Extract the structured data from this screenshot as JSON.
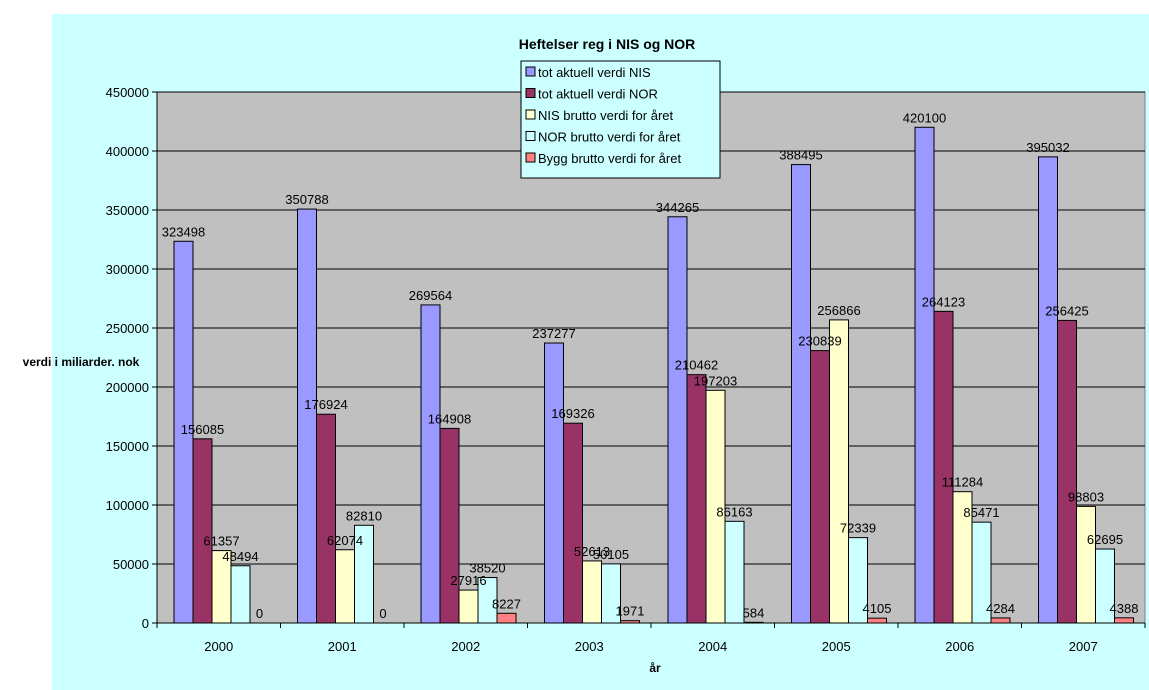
{
  "chart_data": {
    "type": "bar",
    "title": "Heftelser reg i NIS og NOR",
    "xlabel": "år",
    "ylabel": "verdi i miliarder. nok",
    "ylim": [
      0,
      450000
    ],
    "yticks": [
      0,
      50000,
      100000,
      150000,
      200000,
      250000,
      300000,
      350000,
      400000,
      450000
    ],
    "categories": [
      "2000",
      "2001",
      "2002",
      "2003",
      "2004",
      "2005",
      "2006",
      "2007"
    ],
    "series": [
      {
        "name": "tot aktuell verdi NIS",
        "color": "#9999ff",
        "values": [
          323498,
          350788,
          269564,
          237277,
          344265,
          388495,
          420100,
          395032
        ]
      },
      {
        "name": "tot aktuell verdi NOR",
        "color": "#993366",
        "values": [
          156085,
          176924,
          164908,
          169326,
          210462,
          230839,
          264123,
          256425
        ]
      },
      {
        "name": "NIS brutto verdi for året",
        "color": "#ffffcc",
        "values": [
          61357,
          62074,
          27916,
          52613,
          197203,
          256866,
          111284,
          98803
        ]
      },
      {
        "name": "NOR brutto verdi for året",
        "color": "#ccffff",
        "values": [
          48494,
          82810,
          38520,
          50105,
          86163,
          72339,
          85471,
          62695
        ]
      },
      {
        "name": "Bygg brutto verdi for året",
        "color": "#ff8080",
        "values": [
          0,
          0,
          8227,
          1971,
          584,
          4105,
          4284,
          4388
        ]
      }
    ],
    "grid": true,
    "plot_background": "#c0c0c0",
    "chart_background": "#ccffff",
    "legend_position": "top-center"
  }
}
